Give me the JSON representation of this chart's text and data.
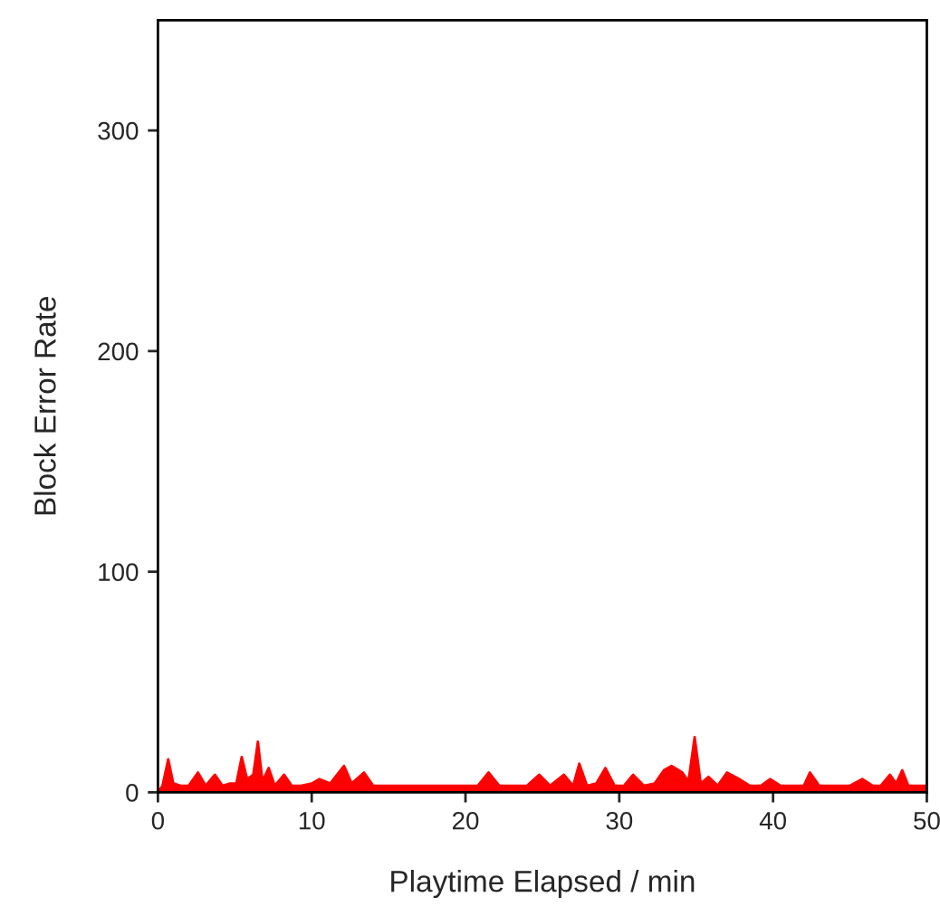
{
  "chart_data": {
    "type": "area",
    "xlabel": "Playtime Elapsed / min",
    "ylabel": "Block Error Rate",
    "color": "#ff0000",
    "xlim": [
      0,
      50
    ],
    "ylim": [
      0,
      350
    ],
    "xticks": [
      0,
      10,
      20,
      30,
      40,
      50
    ],
    "yticks": [
      0,
      100,
      200,
      300
    ],
    "grid": false,
    "x": [
      0,
      0.3,
      0.67,
      1.0,
      1.5,
      2.0,
      2.6,
      3.1,
      3.7,
      4.2,
      4.7,
      5.1,
      5.45,
      5.8,
      6.2,
      6.5,
      6.8,
      7.2,
      7.6,
      8.2,
      8.7,
      9.3,
      10.0,
      10.5,
      11.2,
      12.1,
      12.6,
      13.4,
      14.0,
      15.0,
      16.0,
      17.0,
      18.0,
      19.0,
      20.0,
      20.8,
      21.5,
      22.2,
      23.0,
      24.0,
      24.8,
      25.5,
      26.4,
      27.0,
      27.4,
      27.9,
      28.5,
      29.1,
      29.7,
      30.3,
      30.9,
      31.6,
      32.3,
      32.9,
      33.4,
      34.1,
      34.5,
      34.9,
      35.3,
      35.8,
      36.4,
      37.0,
      37.8,
      38.5,
      39.2,
      39.8,
      40.5,
      41.2,
      42.0,
      42.4,
      43.0,
      44.0,
      45.0,
      45.8,
      46.5,
      47.0,
      47.6,
      48.0,
      48.4,
      48.8,
      49.3,
      49.9,
      50
    ],
    "values": [
      0,
      3,
      15,
      4,
      3,
      3,
      9,
      3,
      8,
      3,
      4,
      4,
      16,
      6,
      8,
      23,
      5,
      11,
      3,
      8,
      3,
      3,
      4,
      6,
      4,
      12,
      4,
      9,
      3,
      3,
      3,
      3,
      3,
      3,
      3,
      3,
      9,
      3,
      3,
      3,
      8,
      3,
      8,
      3,
      13,
      3,
      4,
      11,
      3,
      3,
      8,
      3,
      4,
      10,
      12,
      9,
      5,
      25,
      4,
      7,
      3,
      9,
      6,
      3,
      3,
      6,
      3,
      3,
      3,
      9,
      3,
      3,
      3,
      6,
      3,
      3,
      8,
      4,
      10,
      3,
      3,
      3,
      0
    ]
  }
}
